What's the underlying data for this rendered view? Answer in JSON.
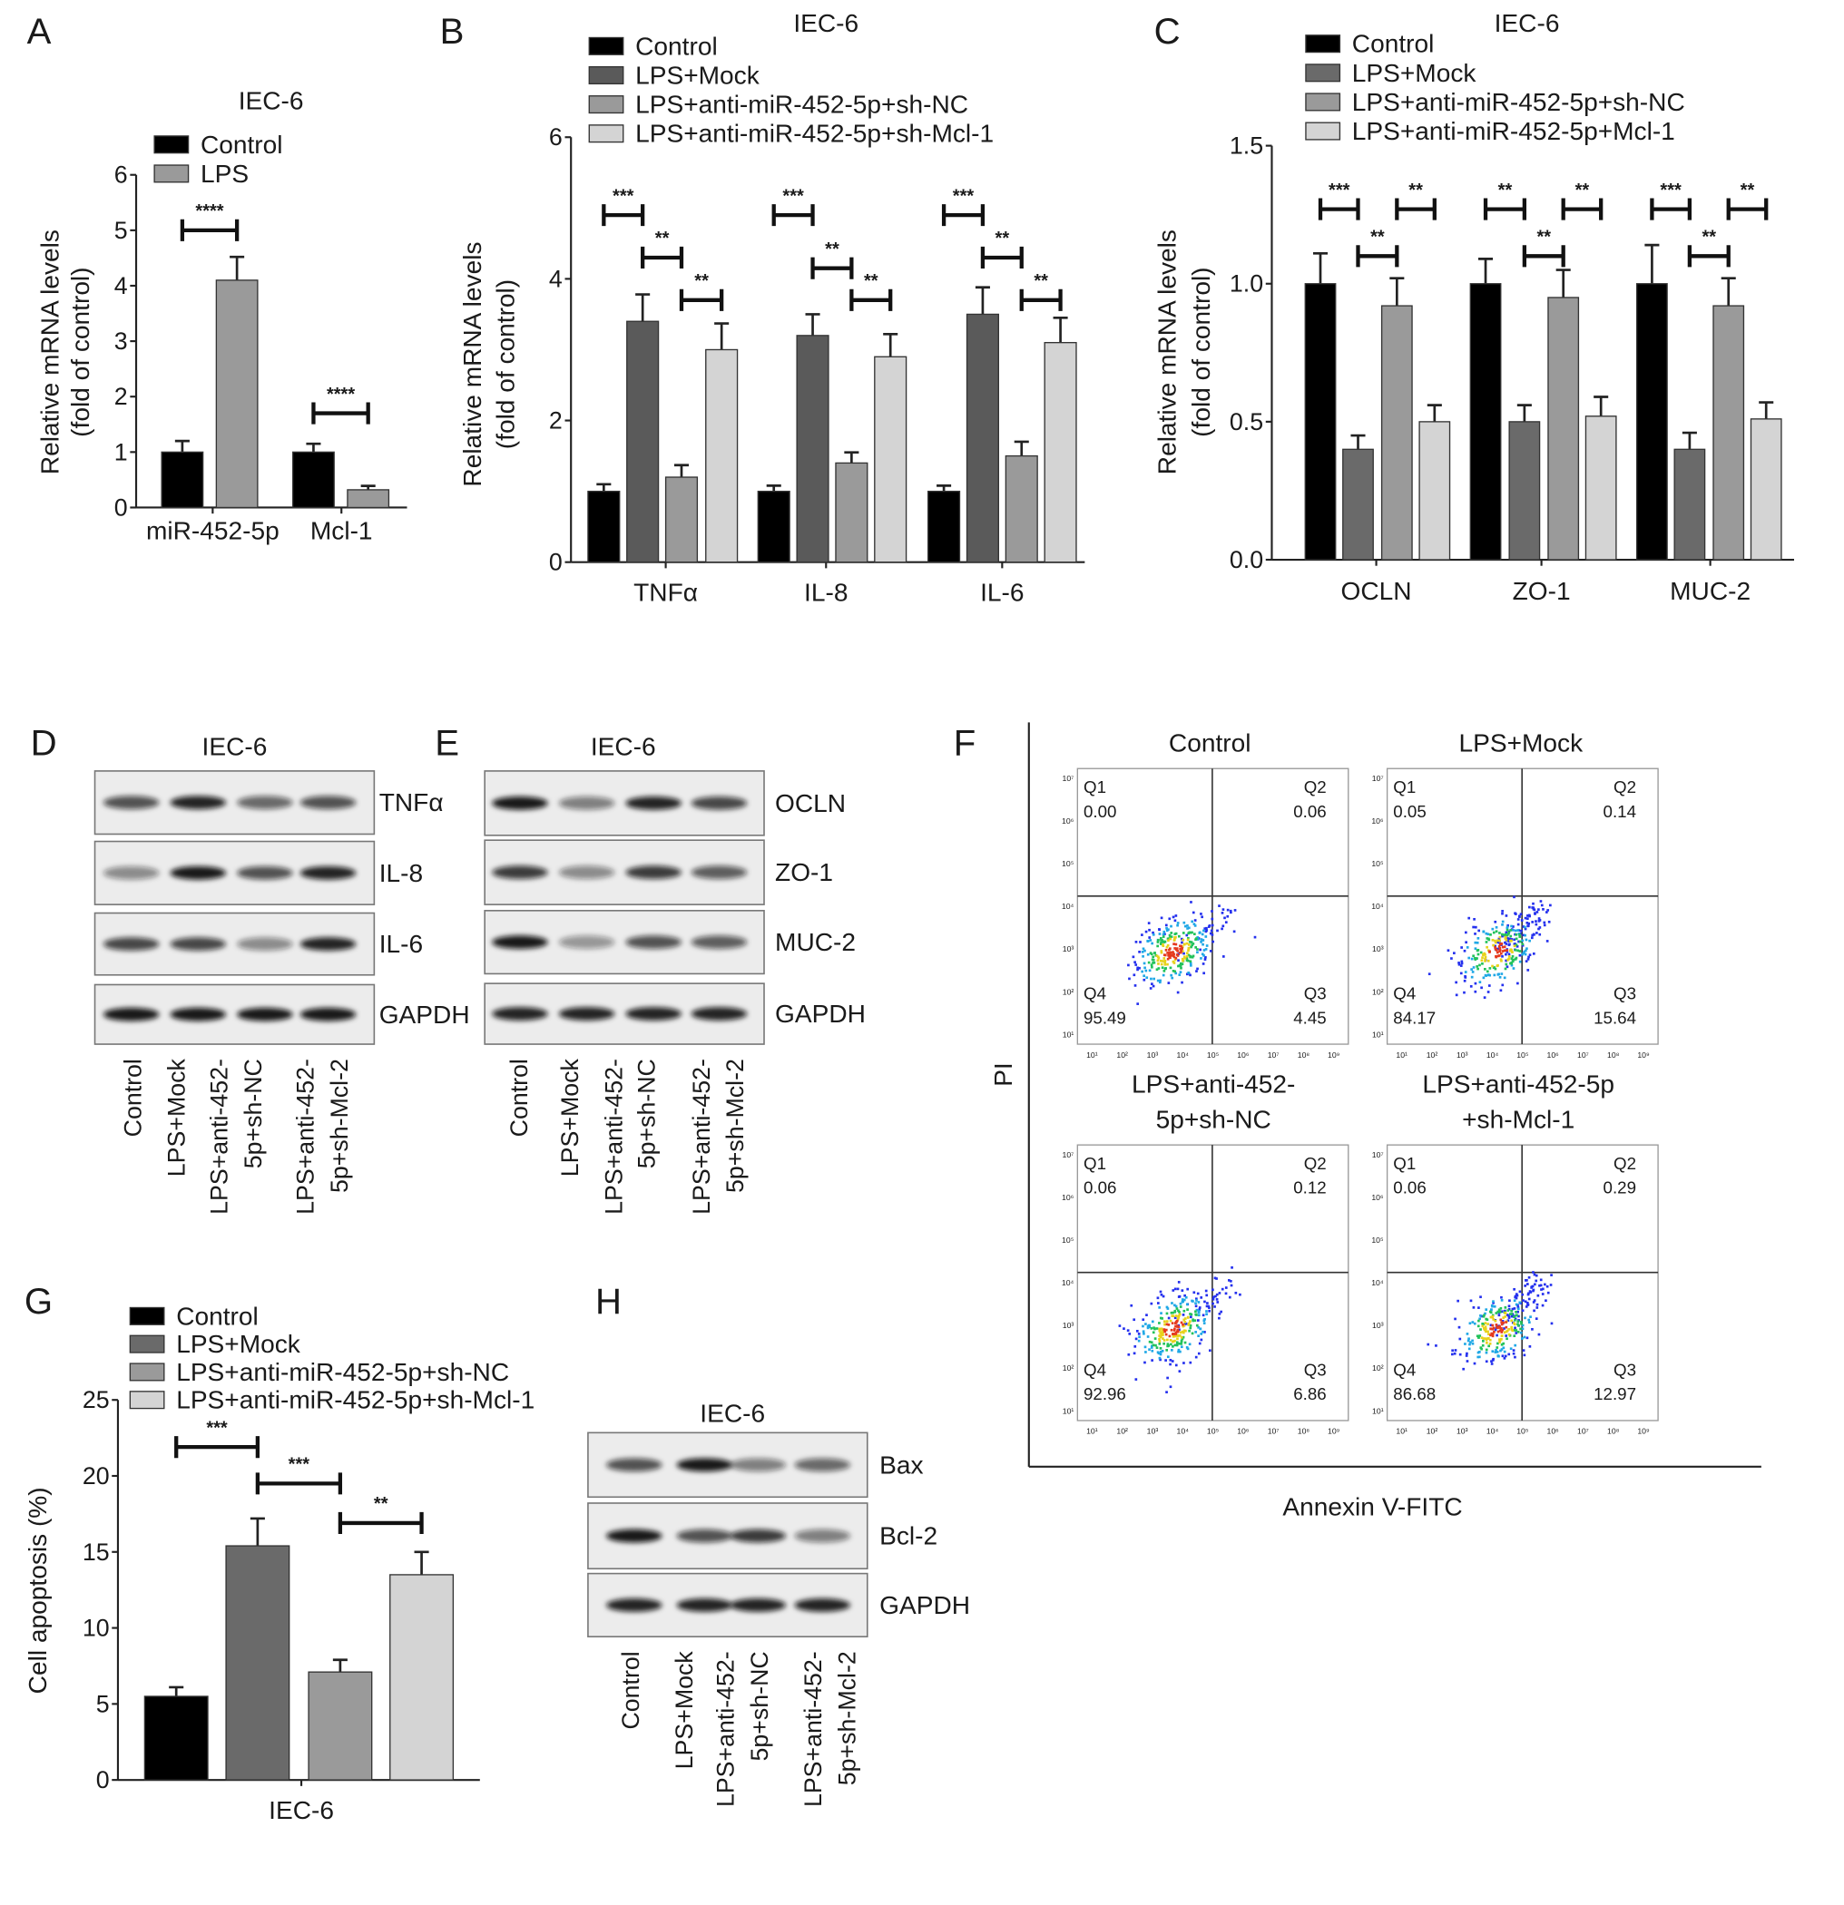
{
  "panel_letters": [
    "A",
    "B",
    "C",
    "D",
    "E",
    "F",
    "G",
    "H"
  ],
  "chart_data": [
    {
      "type": "bar",
      "panel": "A",
      "title": "IEC-6",
      "ylabel": [
        "Relative mRNA levels",
        "(fold of control)"
      ],
      "xlabel": "",
      "ylim": [
        0,
        6
      ],
      "yticks": [
        "0",
        "1",
        "2",
        "3",
        "4",
        "5",
        "6"
      ],
      "categories": [
        "miR-452-5p",
        "Mcl-1"
      ],
      "series": [
        {
          "name": "Control",
          "color": "#000000",
          "values": [
            1.0,
            1.0
          ],
          "errors": [
            0.2,
            0.15
          ]
        },
        {
          "name": "LPS",
          "color": "#9a9a9a",
          "values": [
            4.1,
            0.32
          ],
          "errors": [
            0.42,
            0.07
          ]
        }
      ],
      "significance": [
        {
          "category": 0,
          "from": 0,
          "to": 1,
          "y": 5.0,
          "label": "****"
        },
        {
          "category": 1,
          "from": 0,
          "to": 1,
          "y": 1.7,
          "label": "****"
        }
      ]
    },
    {
      "type": "bar",
      "panel": "B",
      "title": "IEC-6",
      "ylabel": [
        "Relative mRNA levels",
        "(fold of control)"
      ],
      "xlabel": "",
      "ylim": [
        0,
        6
      ],
      "yticks": [
        "0",
        "2",
        "4",
        "6"
      ],
      "categories": [
        "TNFα",
        "IL-8",
        "IL-6"
      ],
      "series": [
        {
          "name": "Control",
          "color": "#000000",
          "values": [
            1.0,
            1.0,
            1.0
          ],
          "errors": [
            0.1,
            0.08,
            0.08
          ]
        },
        {
          "name": "LPS+Mock",
          "color": "#5a5a5a",
          "values": [
            3.4,
            3.2,
            3.5
          ],
          "errors": [
            0.38,
            0.3,
            0.38
          ]
        },
        {
          "name": "LPS+anti-miR-452-5p+sh-NC",
          "color": "#9a9a9a",
          "values": [
            1.2,
            1.4,
            1.5
          ],
          "errors": [
            0.17,
            0.15,
            0.2
          ]
        },
        {
          "name": "LPS+anti-miR-452-5p+sh-Mcl-1",
          "color": "#d4d4d4",
          "values": [
            3.0,
            2.9,
            3.1
          ],
          "errors": [
            0.37,
            0.32,
            0.35
          ]
        }
      ],
      "significance": [
        {
          "category": 0,
          "from": 0,
          "to": 1,
          "y": 4.9,
          "label": "***"
        },
        {
          "category": 0,
          "from": 1,
          "to": 2,
          "y": 4.3,
          "label": "**"
        },
        {
          "category": 0,
          "from": 2,
          "to": 3,
          "y": 3.7,
          "label": "**"
        },
        {
          "category": 1,
          "from": 0,
          "to": 1,
          "y": 4.9,
          "label": "***"
        },
        {
          "category": 1,
          "from": 1,
          "to": 2,
          "y": 4.15,
          "label": "**"
        },
        {
          "category": 1,
          "from": 2,
          "to": 3,
          "y": 3.7,
          "label": "**"
        },
        {
          "category": 2,
          "from": 0,
          "to": 1,
          "y": 4.9,
          "label": "***"
        },
        {
          "category": 2,
          "from": 1,
          "to": 2,
          "y": 4.3,
          "label": "**"
        },
        {
          "category": 2,
          "from": 2,
          "to": 3,
          "y": 3.7,
          "label": "**"
        }
      ]
    },
    {
      "type": "bar",
      "panel": "C",
      "title": "IEC-6",
      "ylabel": [
        "Relative mRNA levels",
        "(fold of control)"
      ],
      "xlabel": "",
      "ylim": [
        0,
        1.5
      ],
      "yticks": [
        "0.0",
        "0.5",
        "1.0",
        "1.5"
      ],
      "categories": [
        "OCLN",
        "ZO-1",
        "MUC-2"
      ],
      "series": [
        {
          "name": "Control",
          "color": "#000000",
          "values": [
            1.0,
            1.0,
            1.0
          ],
          "errors": [
            0.11,
            0.09,
            0.14
          ]
        },
        {
          "name": "LPS+Mock",
          "color": "#6a6a6a",
          "values": [
            0.4,
            0.5,
            0.4
          ],
          "errors": [
            0.05,
            0.06,
            0.06
          ]
        },
        {
          "name": "LPS+anti-miR-452-5p+sh-NC",
          "color": "#9a9a9a",
          "values": [
            0.92,
            0.95,
            0.92
          ],
          "errors": [
            0.1,
            0.1,
            0.1
          ]
        },
        {
          "name": "LPS+anti-miR-452-5p+Mcl-1",
          "color": "#d4d4d4",
          "values": [
            0.5,
            0.52,
            0.51
          ],
          "errors": [
            0.06,
            0.07,
            0.06
          ]
        }
      ],
      "significance": [
        {
          "category": 0,
          "from": 0,
          "to": 1,
          "y": 1.27,
          "label": "***"
        },
        {
          "category": 0,
          "from": 2,
          "to": 3,
          "y": 1.27,
          "label": "**"
        },
        {
          "category": 0,
          "from": 1,
          "to": 2,
          "y": 1.1,
          "label": "**"
        },
        {
          "category": 1,
          "from": 0,
          "to": 1,
          "y": 1.27,
          "label": "**"
        },
        {
          "category": 1,
          "from": 2,
          "to": 3,
          "y": 1.27,
          "label": "**"
        },
        {
          "category": 1,
          "from": 1,
          "to": 2,
          "y": 1.1,
          "label": "**"
        },
        {
          "category": 2,
          "from": 0,
          "to": 1,
          "y": 1.27,
          "label": "***"
        },
        {
          "category": 2,
          "from": 2,
          "to": 3,
          "y": 1.27,
          "label": "**"
        },
        {
          "category": 2,
          "from": 1,
          "to": 2,
          "y": 1.1,
          "label": "**"
        }
      ]
    },
    {
      "type": "bar",
      "panel": "G",
      "title": "",
      "ylabel": [
        "Cell apoptosis (%)"
      ],
      "xlabel": "",
      "ylim": [
        0,
        25
      ],
      "yticks": [
        "0",
        "5",
        "10",
        "15",
        "20",
        "25"
      ],
      "categories": [
        "IEC-6"
      ],
      "series": [
        {
          "name": "Control",
          "color": "#000000",
          "values": [
            5.5
          ],
          "errors": [
            0.6
          ]
        },
        {
          "name": "LPS+Mock",
          "color": "#6a6a6a",
          "values": [
            15.4
          ],
          "errors": [
            1.8
          ]
        },
        {
          "name": "LPS+anti-miR-452-5p+sh-NC",
          "color": "#9a9a9a",
          "values": [
            7.1
          ],
          "errors": [
            0.8
          ]
        },
        {
          "name": "LPS+anti-miR-452-5p+sh-Mcl-1",
          "color": "#d4d4d4",
          "values": [
            13.5
          ],
          "errors": [
            1.5
          ]
        }
      ],
      "significance": [
        {
          "category": 0,
          "from": 0,
          "to": 1,
          "y": 21.9,
          "label": "***"
        },
        {
          "category": 0,
          "from": 1,
          "to": 2,
          "y": 19.5,
          "label": "***"
        },
        {
          "category": 0,
          "from": 2,
          "to": 3,
          "y": 16.9,
          "label": "**"
        }
      ]
    },
    {
      "type": "scatter",
      "panel": "F",
      "xlabel": "Annexin V-FITC",
      "ylabel": "PI",
      "x_ticks": [
        "10¹",
        "10²",
        "10³",
        "10⁴",
        "10⁵",
        "10⁶",
        "10⁷",
        "10⁸",
        "10⁹"
      ],
      "y_ticks": [
        "10¹",
        "10²",
        "10³",
        "10⁴",
        "10⁵",
        "10⁶",
        "10⁷"
      ],
      "plots": [
        {
          "title": [
            "Control"
          ],
          "Q1": "0.00",
          "Q2": "0.06",
          "Q3": "4.45",
          "Q4": "95.49"
        },
        {
          "title": [
            "LPS+Mock"
          ],
          "Q1": "0.05",
          "Q2": "0.14",
          "Q3": "15.64",
          "Q4": "84.17"
        },
        {
          "title": [
            "LPS+anti-452-",
            "5p+sh-NC"
          ],
          "Q1": "0.06",
          "Q2": "0.12",
          "Q3": "6.86",
          "Q4": "92.96"
        },
        {
          "title": [
            "LPS+anti-452-5p",
            "+sh-Mcl-1"
          ],
          "Q1": "0.06",
          "Q2": "0.29",
          "Q3": "12.97",
          "Q4": "86.68"
        }
      ],
      "quadrant_labels": [
        "Q1",
        "Q2",
        "Q3",
        "Q4"
      ]
    }
  ],
  "blots": [
    {
      "panel": "D",
      "title": "IEC-6",
      "lanes": [
        [
          "Control"
        ],
        [
          "LPS+Mock"
        ],
        [
          "LPS+anti-452-",
          "5p+sh-NC"
        ],
        [
          "LPS+anti-452-",
          "5p+sh-Mcl-2"
        ]
      ],
      "proteins": [
        {
          "name": "TNFα",
          "intensity": [
            0.7,
            0.9,
            0.6,
            0.7
          ]
        },
        {
          "name": "IL-8",
          "intensity": [
            0.45,
            0.95,
            0.7,
            0.9
          ]
        },
        {
          "name": "IL-6",
          "intensity": [
            0.75,
            0.75,
            0.45,
            0.9
          ]
        },
        {
          "name": "GAPDH",
          "intensity": [
            0.95,
            0.95,
            0.95,
            0.95
          ]
        }
      ]
    },
    {
      "panel": "E",
      "title": "IEC-6",
      "lanes": [
        [
          "Control"
        ],
        [
          "LPS+Mock"
        ],
        [
          "LPS+anti-452-",
          "5p+sh-NC"
        ],
        [
          "LPS+anti-452-",
          "5p+sh-Mcl-2"
        ]
      ],
      "proteins": [
        {
          "name": "OCLN",
          "intensity": [
            0.95,
            0.5,
            0.9,
            0.75
          ]
        },
        {
          "name": "ZO-1",
          "intensity": [
            0.8,
            0.45,
            0.8,
            0.65
          ]
        },
        {
          "name": "MUC-2",
          "intensity": [
            0.95,
            0.4,
            0.7,
            0.65
          ]
        },
        {
          "name": "GAPDH",
          "intensity": [
            0.9,
            0.9,
            0.9,
            0.9
          ]
        }
      ]
    },
    {
      "panel": "H",
      "title": "IEC-6",
      "lanes": [
        [
          "Control"
        ],
        [
          "LPS+Mock"
        ],
        [
          "LPS+anti-452-",
          "5p+sh-NC"
        ],
        [
          "LPS+anti-452-",
          "5p+sh-Mcl-2"
        ]
      ],
      "proteins": [
        {
          "name": "Bax",
          "intensity": [
            0.7,
            0.95,
            0.5,
            0.6
          ]
        },
        {
          "name": "Bcl-2",
          "intensity": [
            0.95,
            0.7,
            0.8,
            0.5
          ]
        },
        {
          "name": "GAPDH",
          "intensity": [
            0.9,
            0.9,
            0.9,
            0.9
          ]
        }
      ]
    }
  ]
}
